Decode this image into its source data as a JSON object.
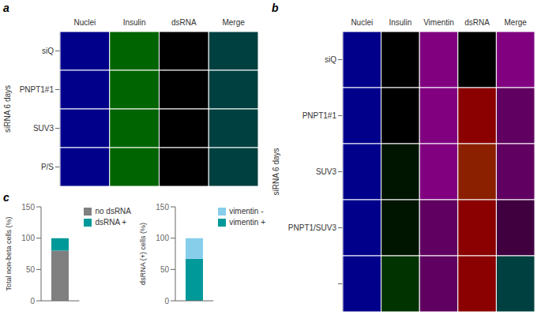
{
  "chart_data": [
    {
      "type": "image_grid",
      "title": "a",
      "categories": [
        "Nuclei",
        "Insulin",
        "dsRNA",
        "Merge"
      ],
      "rows": [
        "siQ",
        "PNPT1#1",
        "SUV3",
        "P/S"
      ],
      "ylabel": "siRNA 6 days",
      "cells": [
        [
          "#00008B",
          "#006400",
          "#000000",
          "#004040"
        ],
        [
          "#00008B",
          "#006400",
          "#000000",
          "#004040"
        ],
        [
          "#00008B",
          "#006400",
          "#000000",
          "#004040"
        ],
        [
          "#00008B",
          "#006400",
          "#000000",
          "#004040"
        ]
      ]
    },
    {
      "type": "image_grid",
      "title": "b",
      "categories": [
        "Nuclei",
        "Insulin",
        "Vimentin",
        "dsRNA",
        "Merge"
      ],
      "rows": [
        "siQ",
        "PNPT1#1",
        "SUV3",
        "PNPT1/SUV3",
        null
      ],
      "ylabel": "siRNA 6 days",
      "cells": [
        [
          "#00008B",
          "#000000",
          "#800080",
          "#000000",
          "#800080"
        ],
        [
          "#00008B",
          "#000000",
          "#800080",
          "#8B0000",
          "#600060"
        ],
        [
          "#00008B",
          "#001500",
          "#800080",
          "#8B2000",
          "#600060"
        ],
        [
          "#00008B",
          "#001500",
          "#600060",
          "#8B0000",
          "#400040"
        ],
        [
          "#00008B",
          "#003300",
          "#600060",
          "#8B0000",
          "#004040"
        ]
      ]
    },
    {
      "type": "bar",
      "title": "c",
      "stacked": true,
      "categories": [
        null
      ],
      "series": [
        {
          "name": "no dsRNA",
          "color": "#808080",
          "values": [
            80
          ]
        },
        {
          "name": "dsRNA +",
          "color": "#009999",
          "values": [
            20
          ]
        }
      ],
      "ylabel": "Total non-beta cells (%)",
      "ylim": [
        0,
        150
      ],
      "yticks": [
        0,
        50,
        100,
        150
      ],
      "legend": "right"
    },
    {
      "type": "bar",
      "stacked": true,
      "categories": [
        null
      ],
      "series": [
        {
          "name": "vimentin +",
          "color": "#009999",
          "values": [
            67
          ]
        },
        {
          "name": "vimentin -",
          "color": "#87CEEB",
          "values": [
            33
          ]
        }
      ],
      "ylabel": "dsRNA (+) cells (%)",
      "ylim": [
        0,
        150
      ],
      "yticks": [
        0,
        50,
        100,
        150
      ],
      "legend": "right"
    }
  ]
}
